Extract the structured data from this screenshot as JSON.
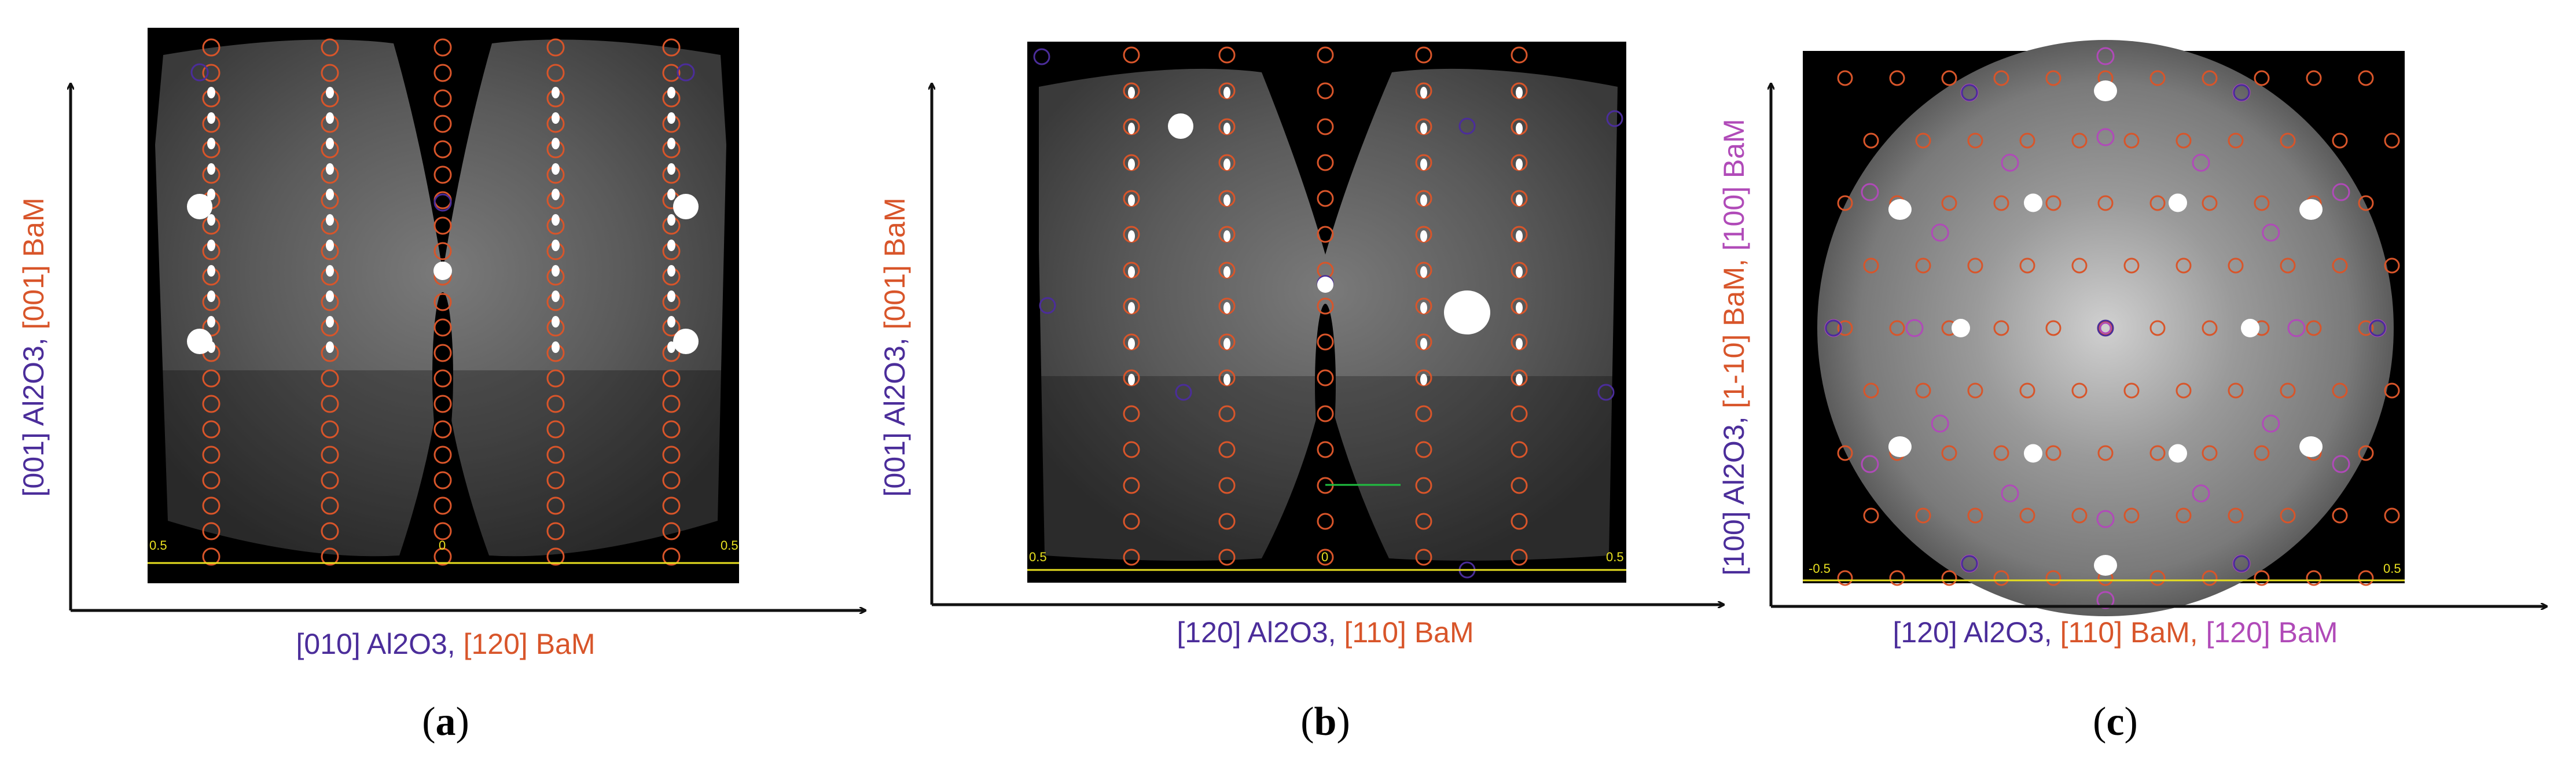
{
  "colors": {
    "al2o3": "#4b2d9a",
    "bam_orange": "#d8552a",
    "bam_magenta": "#b04ab8",
    "scale_yellow": "#e8e020",
    "background": "#000000"
  },
  "panels": [
    {
      "id": "a",
      "letter": "a",
      "xlabel": [
        {
          "text": "[010] Al2O3, ",
          "color": "al2o3"
        },
        {
          "text": "[120] BaM",
          "color": "bam_orange"
        }
      ],
      "ylabel": [
        {
          "text": "[001] Al2O3, ",
          "color": "al2o3"
        },
        {
          "text": "[001] BaM",
          "color": "bam_orange"
        }
      ],
      "ticks": [
        "0.5",
        "0",
        "0.5"
      ]
    },
    {
      "id": "b",
      "letter": "b",
      "xlabel": [
        {
          "text": "[120] Al2O3, ",
          "color": "al2o3"
        },
        {
          "text": "[110] BaM",
          "color": "bam_orange"
        }
      ],
      "ylabel": [
        {
          "text": "[001] Al2O3, ",
          "color": "al2o3"
        },
        {
          "text": "[001] BaM",
          "color": "bam_orange"
        }
      ],
      "ticks": [
        "0.5",
        "0",
        "0.5"
      ]
    },
    {
      "id": "c",
      "letter": "c",
      "xlabel": [
        {
          "text": "[120] Al2O3, ",
          "color": "al2o3"
        },
        {
          "text": "[110] BaM, ",
          "color": "bam_orange"
        },
        {
          "text": "[120] BaM",
          "color": "bam_magenta"
        }
      ],
      "ylabel": [
        {
          "text": "[100] Al2O3, ",
          "color": "al2o3"
        },
        {
          "text": "[1-10] BaM, ",
          "color": "bam_orange"
        },
        {
          "text": "[100] BaM",
          "color": "bam_magenta"
        }
      ],
      "ticks": [
        "-0.5",
        "0.5"
      ]
    }
  ]
}
